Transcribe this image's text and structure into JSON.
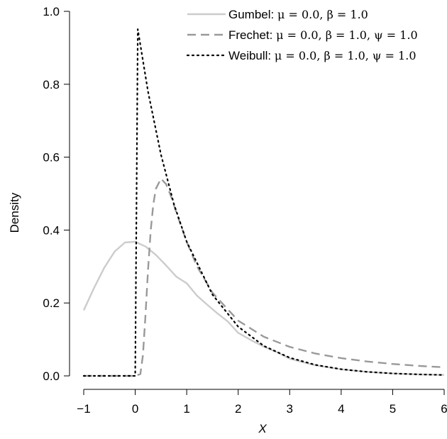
{
  "chart_data": {
    "type": "line",
    "title": "",
    "xlabel": "X",
    "ylabel": "Density",
    "xlim": [
      -1,
      6
    ],
    "ylim": [
      0,
      1.0
    ],
    "xticks": [
      -1,
      0,
      1,
      2,
      3,
      4,
      5,
      6
    ],
    "xtick_labels": [
      "−1",
      "0",
      "1",
      "2",
      "3",
      "4",
      "5",
      "6"
    ],
    "yticks": [
      0.0,
      0.2,
      0.4,
      0.6,
      0.8,
      1.0
    ],
    "ytick_labels": [
      "0.0",
      "0.2",
      "0.4",
      "0.6",
      "0.8",
      "1.0"
    ],
    "grid": false,
    "legend_position": "top-right",
    "series": [
      {
        "name": "Gumbel: μ = 0.0, β = 1.0",
        "color": "#cccccc",
        "dash": "solid",
        "x": [
          -1.0,
          -0.8,
          -0.6,
          -0.4,
          -0.2,
          0.0,
          0.2,
          0.4,
          0.6,
          0.8,
          1.0,
          1.2,
          1.4,
          1.6,
          1.8,
          2.0,
          2.25,
          2.5,
          2.75,
          3.0,
          3.5,
          4.0,
          4.5,
          5.0,
          5.5,
          6.0
        ],
        "values": [
          0.18,
          0.241,
          0.297,
          0.341,
          0.366,
          0.368,
          0.355,
          0.332,
          0.303,
          0.272,
          0.254,
          0.22,
          0.195,
          0.171,
          0.149,
          0.118,
          0.098,
          0.08,
          0.065,
          0.047,
          0.029,
          0.018,
          0.011,
          0.0067,
          0.0041,
          0.0025
        ]
      },
      {
        "name": "Frechet: μ = 0.0, β = 1.0, ψ = 1.0",
        "color": "#999999",
        "dash": "dashed",
        "x": [
          -1.0,
          0.0,
          0.1,
          0.15,
          0.2,
          0.25,
          0.3,
          0.35,
          0.4,
          0.5,
          0.6,
          0.7,
          0.8,
          1.0,
          1.2,
          1.5,
          2.0,
          2.5,
          3.0,
          3.5,
          4.0,
          4.5,
          5.0,
          5.5,
          6.0
        ],
        "values": [
          0.0,
          0.0,
          0.005,
          0.057,
          0.168,
          0.293,
          0.397,
          0.469,
          0.513,
          0.541,
          0.526,
          0.4908,
          0.4478,
          0.368,
          0.3004,
          0.2282,
          0.1516,
          0.1072,
          0.0796,
          0.0613,
          0.0487,
          0.0395,
          0.0327,
          0.0275,
          0.0235
        ]
      },
      {
        "name": "Weibull: μ = 0.0, β = 1.0, ψ = 1.0",
        "color": "#000000",
        "dash": "dotted",
        "x": [
          -1.0,
          0.0,
          0.05,
          0.25,
          0.5,
          0.75,
          1.0,
          1.5,
          2.0,
          2.5,
          3.0,
          3.5,
          4.0,
          4.5,
          5.0,
          5.5,
          6.0
        ],
        "values": [
          0.0,
          0.0,
          0.951,
          0.779,
          0.607,
          0.472,
          0.368,
          0.223,
          0.135,
          0.082,
          0.0498,
          0.0302,
          0.0183,
          0.0111,
          0.0067,
          0.0041,
          0.0025
        ]
      }
    ],
    "legend": [
      {
        "label": "Gumbel: ",
        "math": "μ = 0.0, β = 1.0"
      },
      {
        "label": "Frechet: ",
        "math": "μ = 0.0, β = 1.0, ψ = 1.0"
      },
      {
        "label": "Weibull: ",
        "math": "μ = 0.0, β = 1.0, ψ = 1.0"
      }
    ]
  }
}
